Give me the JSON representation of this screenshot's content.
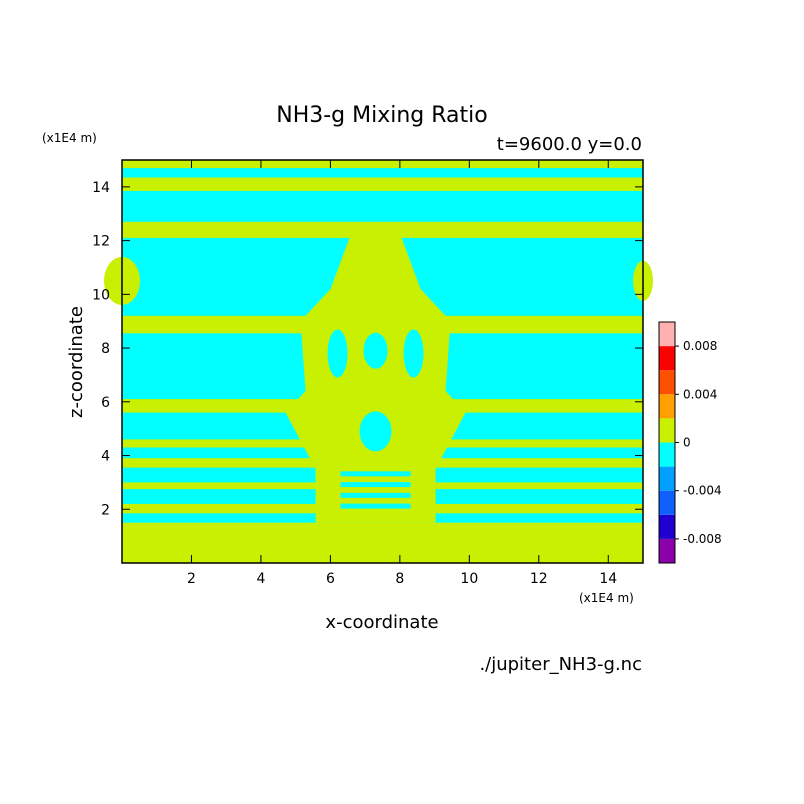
{
  "chart_data": {
    "type": "heatmap",
    "title": "NH3-g Mixing Ratio",
    "subtitle": "t=9600.0 y=0.0",
    "xlabel": "x-coordinate",
    "ylabel": "z-coordinate",
    "x_unit": "(x1E4 m)",
    "y_unit": "(x1E4 m)",
    "xlim": [
      0,
      15
    ],
    "ylim": [
      0,
      15
    ],
    "x_ticks": [
      "2",
      "4",
      "6",
      "8",
      "10",
      "12",
      "14"
    ],
    "y_ticks": [
      "2",
      "4",
      "6",
      "8",
      "10",
      "12",
      "14"
    ],
    "colorbar": {
      "levels": [
        -0.01,
        -0.008,
        -0.006,
        -0.004,
        -0.002,
        0,
        0.002,
        0.004,
        0.006,
        0.008,
        0.01
      ],
      "colors": [
        "#8B00A8",
        "#1F00D0",
        "#1060FF",
        "#00A0FF",
        "#00FFFF",
        "#C8F000",
        "#FFA000",
        "#FF5000",
        "#FF0000",
        "#FFB0B0"
      ],
      "tick_labels": [
        "0.008",
        "0.004",
        "0",
        "-0.004",
        "-0.008"
      ]
    },
    "field_colors": {
      "near_zero_negative": "#00FFFF",
      "near_zero_positive": "#C8F000"
    },
    "grid": false
  },
  "footer": {
    "filename": "./jupiter_NH3-g.nc"
  }
}
